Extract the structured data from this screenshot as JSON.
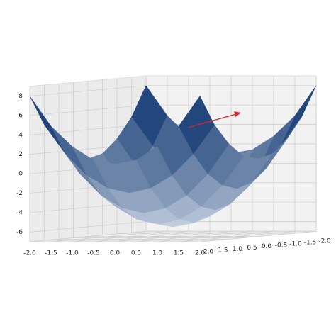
{
  "chart_data": {
    "type": "surface3d",
    "x": [
      -2,
      -1.5,
      -1,
      -0.5,
      0,
      0.5,
      1,
      1.5,
      2
    ],
    "y": [
      -2,
      -1.5,
      -1,
      -0.5,
      0,
      0.5,
      1,
      1.5,
      2
    ],
    "z": [
      [
        8,
        4.9,
        2.8,
        1.4,
        1,
        1.4,
        2.8,
        4.9,
        8
      ],
      [
        4.9,
        1.9,
        -0.3,
        -1.6,
        -2.1,
        -1.6,
        -0.3,
        1.9,
        4.9
      ],
      [
        2.8,
        -0.3,
        -2.5,
        -3.8,
        -4.3,
        -3.8,
        -2.5,
        -0.3,
        2.8
      ],
      [
        1.4,
        -1.6,
        -3.8,
        -5.1,
        -5.6,
        -5.1,
        -3.8,
        -1.6,
        1.4
      ],
      [
        1,
        -2.1,
        -4.3,
        -5.6,
        -6,
        -5.6,
        -4.3,
        -2.1,
        1
      ],
      [
        1.4,
        -1.6,
        -3.8,
        -5.1,
        -5.6,
        -5.1,
        -3.8,
        -1.6,
        1.4
      ],
      [
        2.8,
        -0.3,
        -2.5,
        -3.8,
        -4.3,
        -3.8,
        -2.5,
        -0.3,
        2.8
      ],
      [
        4.9,
        1.9,
        -0.3,
        -1.6,
        -2.1,
        -1.6,
        -0.3,
        1.9,
        4.9
      ],
      [
        8,
        4.9,
        2.8,
        1.4,
        1,
        1.4,
        2.8,
        4.9,
        8
      ]
    ],
    "colors": [
      "#f7fbff",
      "#08306b"
    ],
    "xlim": [
      -2,
      2
    ],
    "ylim": [
      -2,
      2
    ],
    "zlim": [
      -7,
      9
    ],
    "xticks": [
      {
        "value": -2,
        "label": "-2.0"
      },
      {
        "value": -1.5,
        "label": "-1.5"
      },
      {
        "value": -1,
        "label": "-1.0"
      },
      {
        "value": -0.5,
        "label": "-0.5"
      },
      {
        "value": 0,
        "label": "0.0"
      },
      0.5,
      {
        "value": 1,
        "label": "1.0"
      },
      1.5,
      {
        "value": 2,
        "label": "2.0"
      }
    ],
    "yticks": [
      {
        "value": -2,
        "label": "-2.0"
      },
      {
        "value": -1.5,
        "label": "-1.5"
      },
      {
        "value": -1,
        "label": "-1.0"
      },
      {
        "value": -0.5,
        "label": "-0.5"
      },
      {
        "value": 0,
        "label": "0.0"
      },
      0.5,
      {
        "value": 1,
        "label": "1.0"
      },
      1.5,
      {
        "value": 2,
        "label": "2.0"
      }
    ],
    "zticks": [
      -6,
      -4,
      -2,
      0,
      2,
      4,
      6,
      8
    ],
    "grid": true
  }
}
